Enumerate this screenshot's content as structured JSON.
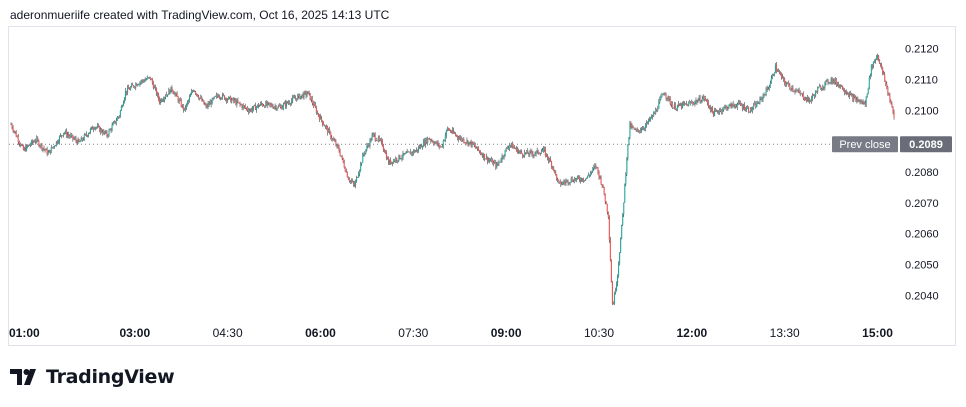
{
  "header": {
    "text": "aderonmueriife created with TradingView.com, Oct 16, 2025 14:13 UTC"
  },
  "brand": {
    "logo_text": "TradingView"
  },
  "colors": {
    "up": "#26a69a",
    "down": "#ef5350",
    "wick": "#131722",
    "prev_close_line": "#787b86",
    "prev_close_label_bg": "#787b86",
    "price_label_bg": "#6a6d78"
  },
  "chart_data": {
    "type": "candlestick",
    "y_axis": {
      "ylim": [
        0.2033,
        0.2127
      ],
      "ticks": [
        "0.2120",
        "0.2110",
        "0.2100",
        "0.2080",
        "0.2070",
        "0.2060",
        "0.2050",
        "0.2040"
      ],
      "tick_values": [
        0.212,
        0.211,
        0.21,
        0.208,
        0.207,
        0.206,
        0.205,
        0.204
      ],
      "position": "right"
    },
    "x_axis": {
      "ticks": [
        "01:00",
        "03:00",
        "04:30",
        "06:00",
        "07:30",
        "09:00",
        "10:30",
        "12:00",
        "13:30",
        "15:00"
      ],
      "tick_hours": [
        1,
        3,
        4.5,
        6,
        7.5,
        9,
        10.5,
        12,
        13.5,
        15
      ],
      "bold_ticks": [
        "01:00",
        "03:00",
        "06:00",
        "09:00",
        "12:00",
        "15:00"
      ],
      "xlim_hours": [
        1,
        15.25
      ]
    },
    "prev_close": {
      "label": "Prev close",
      "value": 0.2089,
      "value_label": "0.2089"
    },
    "price_path": [
      [
        1.0,
        0.20955
      ],
      [
        1.2,
        0.2087
      ],
      [
        1.4,
        0.20905
      ],
      [
        1.6,
        0.2086
      ],
      [
        1.85,
        0.2093
      ],
      [
        2.1,
        0.20895
      ],
      [
        2.35,
        0.2095
      ],
      [
        2.55,
        0.2092
      ],
      [
        2.75,
        0.20985
      ],
      [
        2.85,
        0.2106
      ],
      [
        3.05,
        0.2109
      ],
      [
        3.25,
        0.21105
      ],
      [
        3.4,
        0.2103
      ],
      [
        3.6,
        0.2107
      ],
      [
        3.8,
        0.21
      ],
      [
        3.95,
        0.2107
      ],
      [
        4.15,
        0.2101
      ],
      [
        4.35,
        0.2105
      ],
      [
        4.6,
        0.2103
      ],
      [
        4.85,
        0.21
      ],
      [
        5.05,
        0.2102
      ],
      [
        5.35,
        0.2101
      ],
      [
        5.6,
        0.2104
      ],
      [
        5.8,
        0.21055
      ],
      [
        5.95,
        0.2099
      ],
      [
        6.1,
        0.2094
      ],
      [
        6.3,
        0.2087
      ],
      [
        6.45,
        0.2078
      ],
      [
        6.55,
        0.20755
      ],
      [
        6.7,
        0.2086
      ],
      [
        6.85,
        0.2092
      ],
      [
        7.0,
        0.2089
      ],
      [
        7.1,
        0.2083
      ],
      [
        7.3,
        0.2085
      ],
      [
        7.55,
        0.2087
      ],
      [
        7.75,
        0.2091
      ],
      [
        7.95,
        0.2088
      ],
      [
        8.05,
        0.2094
      ],
      [
        8.25,
        0.2091
      ],
      [
        8.45,
        0.2089
      ],
      [
        8.65,
        0.2085
      ],
      [
        8.85,
        0.2082
      ],
      [
        9.05,
        0.2089
      ],
      [
        9.25,
        0.2086
      ],
      [
        9.45,
        0.2086
      ],
      [
        9.6,
        0.2087
      ],
      [
        9.75,
        0.2082
      ],
      [
        9.85,
        0.2076
      ],
      [
        10.05,
        0.20775
      ],
      [
        10.3,
        0.2078
      ],
      [
        10.45,
        0.2082
      ],
      [
        10.55,
        0.2076
      ],
      [
        10.65,
        0.2066
      ],
      [
        10.72,
        0.2036
      ],
      [
        10.8,
        0.2047
      ],
      [
        10.88,
        0.2065
      ],
      [
        10.95,
        0.2085
      ],
      [
        11.0,
        0.2095
      ],
      [
        11.1,
        0.2093
      ],
      [
        11.25,
        0.2095
      ],
      [
        11.4,
        0.2099
      ],
      [
        11.55,
        0.2106
      ],
      [
        11.7,
        0.2101
      ],
      [
        11.95,
        0.2102
      ],
      [
        12.2,
        0.2104
      ],
      [
        12.35,
        0.2099
      ],
      [
        12.55,
        0.2101
      ],
      [
        12.75,
        0.2102
      ],
      [
        12.95,
        0.21
      ],
      [
        13.1,
        0.2103
      ],
      [
        13.25,
        0.2108
      ],
      [
        13.35,
        0.2114
      ],
      [
        13.5,
        0.2109
      ],
      [
        13.7,
        0.2106
      ],
      [
        13.9,
        0.2103
      ],
      [
        14.05,
        0.2107
      ],
      [
        14.25,
        0.211
      ],
      [
        14.4,
        0.2108
      ],
      [
        14.6,
        0.2104
      ],
      [
        14.8,
        0.2102
      ],
      [
        14.9,
        0.2114
      ],
      [
        15.0,
        0.2118
      ],
      [
        15.1,
        0.2111
      ],
      [
        15.2,
        0.21035
      ],
      [
        15.28,
        0.20965
      ]
    ]
  }
}
